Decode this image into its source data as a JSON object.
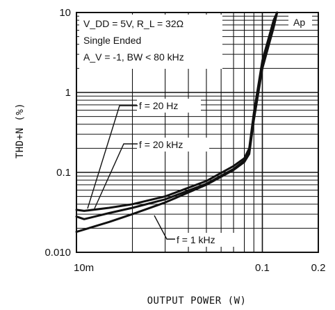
{
  "chart_data": {
    "type": "line",
    "xlabel": "OUTPUT POWER (W)",
    "ylabel": "THD+N (%)",
    "x_scale": "log",
    "y_scale": "log",
    "xlim": [
      0.01,
      0.2
    ],
    "ylim": [
      0.01,
      10
    ],
    "x_ticks": [
      {
        "value": 0.01,
        "label": "10m"
      },
      {
        "value": 0.1,
        "label": "0.1"
      },
      {
        "value": 0.2,
        "label": "0.2"
      }
    ],
    "y_ticks": [
      {
        "value": 10,
        "label": "10"
      },
      {
        "value": 1,
        "label": "1"
      },
      {
        "value": 0.1,
        "label": "0.1"
      },
      {
        "value": 0.01,
        "label": "0.010"
      }
    ],
    "grid": true,
    "conditions": {
      "line1": "V_DD = 5V, R_L = 32Ω",
      "line2": "Single Ended",
      "line3": "A_V = -1, BW < 80 kHz"
    },
    "corner_label": "Ap",
    "series": [
      {
        "name": "f = 20 Hz",
        "x": [
          0.01,
          0.011,
          0.015,
          0.02,
          0.03,
          0.05,
          0.07,
          0.08,
          0.085,
          0.09,
          0.1,
          0.115,
          0.12
        ],
        "y": [
          0.034,
          0.033,
          0.036,
          0.04,
          0.05,
          0.078,
          0.12,
          0.15,
          0.2,
          0.55,
          2.5,
          8,
          10
        ]
      },
      {
        "name": "f = 20 kHz",
        "x": [
          0.01,
          0.011,
          0.015,
          0.02,
          0.03,
          0.05,
          0.07,
          0.08,
          0.085,
          0.09,
          0.1,
          0.115,
          0.12
        ],
        "y": [
          0.028,
          0.026,
          0.031,
          0.036,
          0.046,
          0.072,
          0.11,
          0.14,
          0.18,
          0.5,
          2.2,
          7,
          10
        ]
      },
      {
        "name": "f = 1 kHz",
        "x": [
          0.01,
          0.015,
          0.02,
          0.03,
          0.05,
          0.07,
          0.08,
          0.085,
          0.09,
          0.1,
          0.115,
          0.12
        ],
        "y": [
          0.018,
          0.024,
          0.03,
          0.042,
          0.07,
          0.107,
          0.135,
          0.17,
          0.45,
          2.0,
          6.5,
          10
        ]
      }
    ]
  }
}
